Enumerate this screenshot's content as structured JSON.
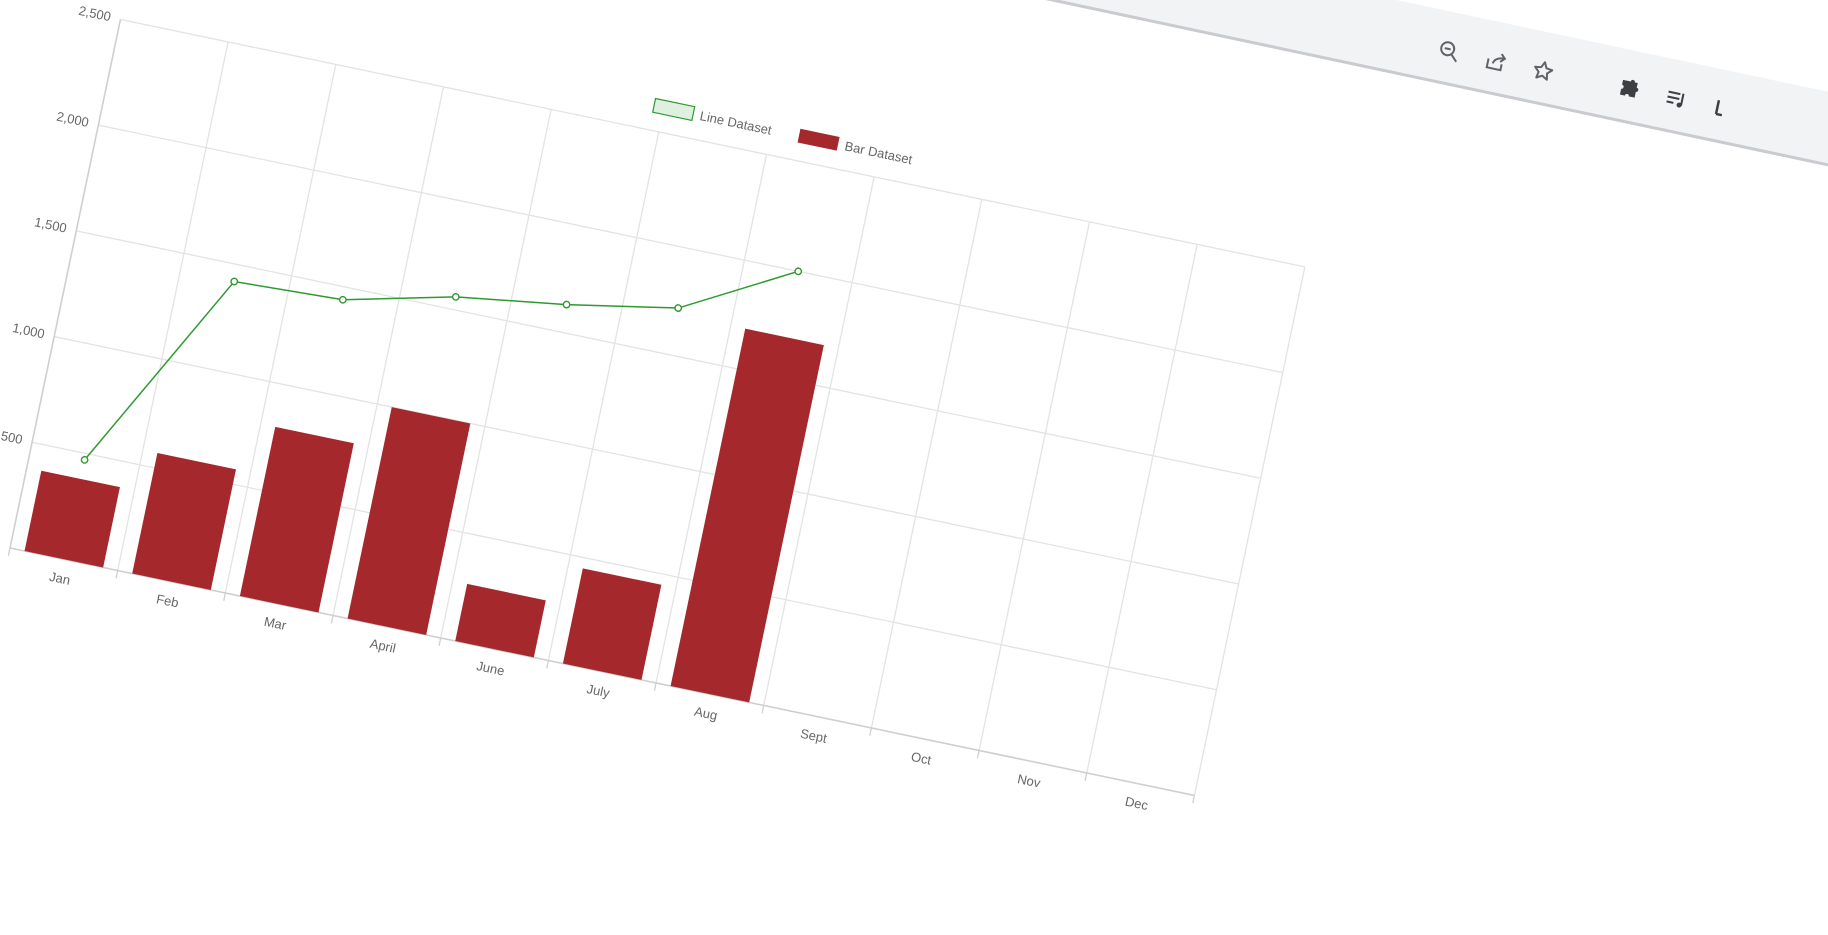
{
  "toolbar": {
    "icons": [
      "zoom-out-icon",
      "share-icon",
      "bookmark-star-icon",
      "extensions-icon",
      "media-queue-icon"
    ]
  },
  "chart_data": {
    "type": "bar",
    "categories": [
      "Jan",
      "Feb",
      "Mar",
      "April",
      "June",
      "July",
      "Aug",
      "Sept",
      "Oct",
      "Nov",
      "Dec"
    ],
    "series": [
      {
        "name": "Line Dataset",
        "type": "line",
        "values": [
          470,
          1420,
          1440,
          1560,
          1630,
          1720,
          2000,
          null,
          null,
          null,
          null
        ]
      },
      {
        "name": "Bar Dataset",
        "type": "bar",
        "values": [
          380,
          570,
          800,
          1000,
          270,
          450,
          1690,
          null,
          null,
          null,
          null
        ]
      }
    ],
    "yticks": [
      "500",
      "1,000",
      "1,500",
      "2,000",
      "2,500"
    ],
    "ylim": [
      0,
      2500
    ],
    "grid": true,
    "legend": "top-center",
    "colors": {
      "line": "#2e9a2e",
      "line_fill": "rgba(46,154,46,0.15)",
      "bar": "#a5282c",
      "grid": "#e3e3e3",
      "axis": "#cfcfcf",
      "tick_text": "#666666"
    }
  }
}
